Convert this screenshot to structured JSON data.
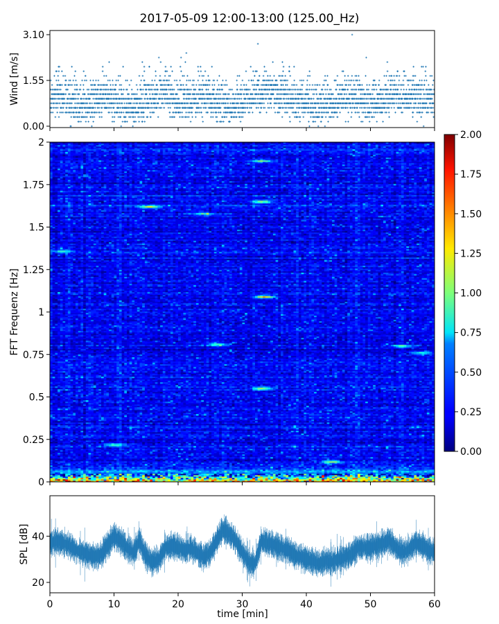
{
  "figure": {
    "title": "2017-05-09 12:00-13:00 (125.00_Hz)"
  },
  "chart_data": [
    {
      "type": "scatter",
      "name": "wind-panel",
      "title": "",
      "ylabel": "Wind [m/s]",
      "xlabel": "",
      "xlim": [
        0,
        60
      ],
      "ylim": [
        0,
        3.1
      ],
      "yticks": [
        0.0,
        1.55,
        3.1
      ],
      "ytick_labels": [
        "0.00",
        "1.55",
        "3.10"
      ],
      "xticks": [
        0,
        10,
        20,
        30,
        40,
        50,
        60
      ],
      "color": "#1f77b4",
      "marker": "+",
      "resolution_mps": 0.155,
      "n_points": 3600,
      "mean_mps": 0.78,
      "max_mps": 3.1,
      "profile_points": [
        [
          0,
          0.8
        ],
        [
          2,
          1.0
        ],
        [
          4,
          0.6
        ],
        [
          6,
          0.7
        ],
        [
          8,
          0.9
        ],
        [
          10,
          0.8
        ],
        [
          12,
          0.6
        ],
        [
          14,
          0.7
        ],
        [
          16,
          0.8
        ],
        [
          18,
          1.1
        ],
        [
          20,
          0.7
        ],
        [
          22,
          0.8
        ],
        [
          24,
          0.9
        ],
        [
          26,
          0.7
        ],
        [
          28,
          0.6
        ],
        [
          30,
          0.7
        ],
        [
          32,
          1.0
        ],
        [
          34,
          1.1
        ],
        [
          36,
          0.9
        ],
        [
          38,
          0.8
        ],
        [
          40,
          0.7
        ],
        [
          42,
          0.6
        ],
        [
          44,
          0.7
        ],
        [
          46,
          0.9
        ],
        [
          48,
          0.8
        ],
        [
          50,
          0.7
        ],
        [
          52,
          0.8
        ],
        [
          54,
          1.0
        ],
        [
          56,
          0.9
        ],
        [
          58,
          0.8
        ],
        [
          60,
          0.8
        ]
      ]
    },
    {
      "type": "heatmap",
      "name": "spectrogram-panel",
      "title": "",
      "ylabel": "FFT Frequenz [Hz]",
      "xlabel": "",
      "xlim": [
        0,
        60
      ],
      "ylim": [
        0,
        2
      ],
      "yticks": [
        0,
        0.25,
        0.5,
        0.75,
        1,
        1.25,
        1.5,
        1.75,
        2
      ],
      "ytick_labels": [
        "0",
        "0.25",
        "0.5",
        "0.75",
        "1",
        "1.25",
        "1.5",
        "1.75",
        "2"
      ],
      "xticks": [
        0,
        10,
        20,
        30,
        40,
        50,
        60
      ],
      "colormap": "jet",
      "colorbar": {
        "range": [
          0,
          2
        ],
        "ticks": [
          0,
          0.25,
          0.5,
          0.75,
          1,
          1.25,
          1.5,
          1.75,
          2
        ],
        "tick_labels": [
          "0.00",
          "0.25",
          "0.50",
          "0.75",
          "1.00",
          "1.25",
          "1.50",
          "1.75",
          "2.00"
        ]
      },
      "background_level": 0.24,
      "low_frequency_band": {
        "freq_max_hz": 0.05,
        "level": 1.3
      },
      "hotspots": [
        {
          "time_min": 15.5,
          "freq_hz": 1.62,
          "level": 0.95
        },
        {
          "time_min": 33.0,
          "freq_hz": 1.65,
          "level": 0.9
        },
        {
          "time_min": 33.5,
          "freq_hz": 1.09,
          "level": 1.1
        },
        {
          "time_min": 33.0,
          "freq_hz": 1.89,
          "level": 0.8
        },
        {
          "time_min": 26.0,
          "freq_hz": 0.81,
          "level": 0.75
        },
        {
          "time_min": 33.0,
          "freq_hz": 0.55,
          "level": 0.85
        },
        {
          "time_min": 55.0,
          "freq_hz": 0.8,
          "level": 0.7
        },
        {
          "time_min": 58.0,
          "freq_hz": 0.76,
          "level": 0.7
        },
        {
          "time_min": 2.0,
          "freq_hz": 1.36,
          "level": 0.6
        },
        {
          "time_min": 10.0,
          "freq_hz": 0.22,
          "level": 0.7
        },
        {
          "time_min": 24.0,
          "freq_hz": 1.58,
          "level": 0.65
        },
        {
          "time_min": 44.0,
          "freq_hz": 0.12,
          "level": 0.85
        }
      ]
    },
    {
      "type": "line",
      "name": "spl-panel",
      "title": "",
      "ylabel": "SPL [dB]",
      "xlabel": "time [min]",
      "xlim": [
        0,
        60
      ],
      "ylim": [
        15.5,
        57.5
      ],
      "yticks": [
        20,
        40
      ],
      "ytick_labels": [
        "20",
        "40"
      ],
      "xticks": [
        0,
        10,
        20,
        30,
        40,
        50,
        60
      ],
      "xtick_labels": [
        "0",
        "10",
        "20",
        "30",
        "40",
        "50",
        "60"
      ],
      "color": "#1f77b4",
      "band_halfwidth_db": 4,
      "x": [
        0,
        1,
        2,
        3,
        4,
        5,
        6,
        7,
        8,
        9,
        10,
        11,
        12,
        13,
        14,
        15,
        16,
        17,
        18,
        19,
        20,
        21,
        22,
        23,
        24,
        25,
        26,
        27,
        28,
        29,
        30,
        31,
        32,
        33,
        34,
        35,
        36,
        37,
        38,
        39,
        40,
        41,
        42,
        43,
        44,
        45,
        46,
        47,
        48,
        49,
        50,
        51,
        52,
        53,
        54,
        55,
        56,
        57,
        58,
        59,
        60
      ],
      "values": [
        37,
        38,
        37,
        36,
        34,
        33,
        32,
        31,
        32,
        36,
        40,
        38,
        35,
        33,
        38,
        31,
        29,
        30,
        35,
        36,
        35,
        34,
        35,
        33,
        31,
        33,
        38,
        43,
        41,
        38,
        33,
        29,
        28,
        38,
        37,
        36,
        35,
        34,
        32,
        31,
        30,
        29,
        28,
        29,
        29,
        30,
        31,
        32,
        35,
        35,
        35,
        36,
        37,
        38,
        35,
        33,
        34,
        37,
        36,
        34,
        33
      ]
    }
  ]
}
